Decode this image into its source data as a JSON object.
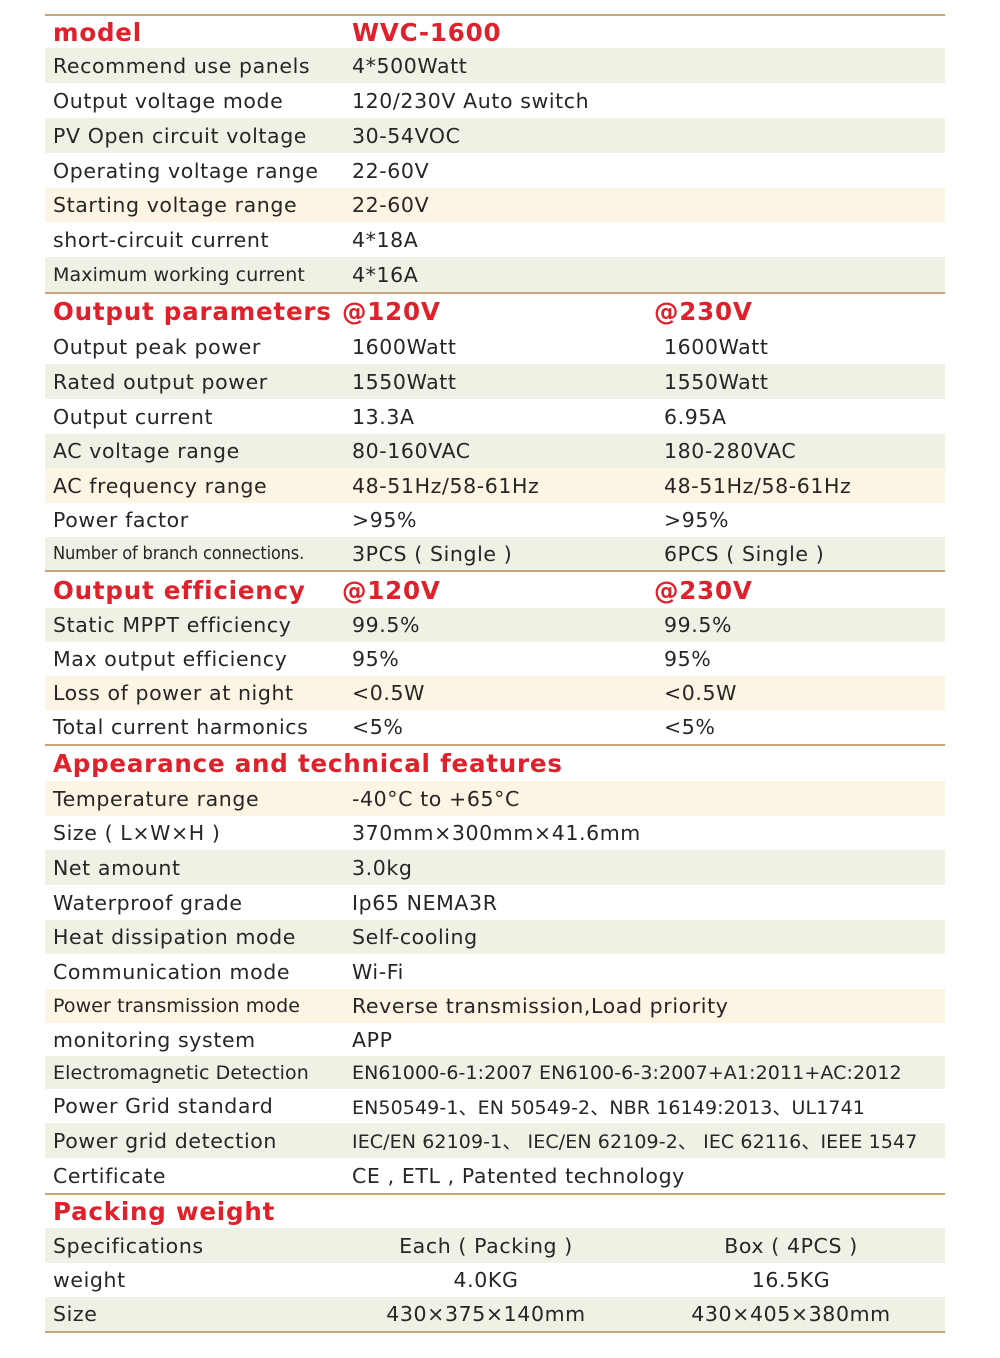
{
  "model_section": {
    "header_label": "model",
    "header_value": "WVC-1600",
    "rows": [
      {
        "label": "Recommend use panels",
        "value": "4*500Watt"
      },
      {
        "label": "Output voltage mode",
        "value": "120/230V Auto switch"
      },
      {
        "label": "PV Open circuit voltage",
        "value": "30-54VOC"
      },
      {
        "label": "Operating voltage range",
        "value": "22-60V"
      },
      {
        "label": "Starting voltage range",
        "value": "22-60V"
      },
      {
        "label": "short-circuit current",
        "value": "4*18A"
      },
      {
        "label": "Maximum working current",
        "value": "4*16A"
      }
    ]
  },
  "output_parameters": {
    "header_label": "Output parameters",
    "col_120": "@120V",
    "col_230": "@230V",
    "rows": [
      {
        "label": "Output peak power",
        "v120": "1600Watt",
        "v230": "1600Watt"
      },
      {
        "label": "Rated output power",
        "v120": "1550Watt",
        "v230": "1550Watt"
      },
      {
        "label": "Output current",
        "v120": "13.3A",
        "v230": "6.95A"
      },
      {
        "label": "AC voltage range",
        "v120": "80-160VAC",
        "v230": "180-280VAC"
      },
      {
        "label": "AC frequency range",
        "v120": "48-51Hz/58-61Hz",
        "v230": "48-51Hz/58-61Hz"
      },
      {
        "label": "Power factor",
        "v120": ">95%",
        "v230": ">95%"
      },
      {
        "label": "Number of branch connections.",
        "v120": "3PCS ( Single )",
        "v230": "6PCS ( Single )"
      }
    ]
  },
  "output_efficiency": {
    "header_label": "Output efficiency",
    "col_120": "@120V",
    "col_230": "@230V",
    "rows": [
      {
        "label": "Static MPPT efficiency",
        "v120": "99.5%",
        "v230": "99.5%"
      },
      {
        "label": "Max output efficiency",
        "v120": "95%",
        "v230": "95%"
      },
      {
        "label": "Loss of power at night",
        "v120": "<0.5W",
        "v230": "<0.5W"
      },
      {
        "label": "Total current harmonics",
        "v120": "<5%",
        "v230": "<5%"
      }
    ]
  },
  "appearance": {
    "header_label": "Appearance and technical features",
    "rows": [
      {
        "label": "Temperature range",
        "value": "-40°C to +65°C"
      },
      {
        "label": "Size ( L×W×H )",
        "value": "370mm×300mm×41.6mm"
      },
      {
        "label": "Net amount",
        "value": "3.0kg"
      },
      {
        "label": "Waterproof grade",
        "value": "Ip65 NEMA3R"
      },
      {
        "label": "Heat dissipation mode",
        "value": "Self-cooling"
      },
      {
        "label": "Communication mode",
        "value": "Wi-Fi"
      },
      {
        "label": "Power transmission mode",
        "value": "Reverse transmission,Load priority"
      },
      {
        "label": "monitoring system",
        "value": "APP"
      },
      {
        "label": "Electromagnetic Detection",
        "value": "EN61000-6-1:2007 EN6100-6-3:2007+A1:2011+AC:2012"
      },
      {
        "label": "Power Grid standard",
        "value": "EN50549-1、EN 50549-2、NBR 16149:2013、UL1741"
      },
      {
        "label": "Power grid detection",
        "value": "IEC/EN 62109-1、 IEC/EN 62109-2、 IEC 62116、IEEE 1547"
      },
      {
        "label": "Certificate",
        "value": "CE , ETL , Patented technology"
      }
    ]
  },
  "packing": {
    "header_label": "Packing weight",
    "rows": [
      {
        "label": "Specifications",
        "each": "Each ( Packing )",
        "box": "Box ( 4PCS )"
      },
      {
        "label": "weight",
        "each": "4.0KG",
        "box": "16.5KG"
      },
      {
        "label": "Size",
        "each": "430×375×140mm",
        "box": "430×405×380mm"
      }
    ]
  }
}
